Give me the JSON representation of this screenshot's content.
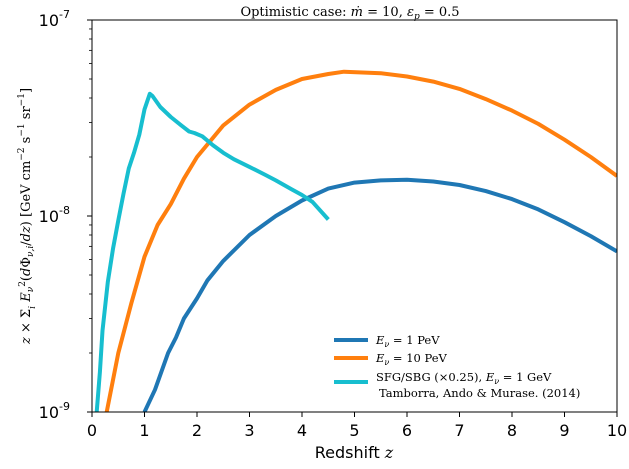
{
  "chart_data": {
    "type": "line",
    "title": "Optimistic case: ṁ = 10,  ε_p = 0.5",
    "xlabel": "Redshift z",
    "ylabel": "z × Σ_i E_ν² (dΦ_ν,i/dz) [GeV cm⁻² s⁻¹ sr⁻¹]",
    "xlim": [
      0,
      10
    ],
    "ylim": [
      1e-09,
      1e-07
    ],
    "yscale": "log",
    "grid": false,
    "legend_position": "lower-right",
    "x_ticks": [
      "0",
      "1",
      "2",
      "3",
      "4",
      "5",
      "6",
      "7",
      "8",
      "9",
      "10"
    ],
    "y_ticks": [
      {
        "base": "10",
        "exp": "-9"
      },
      {
        "base": "10",
        "exp": "-8"
      },
      {
        "base": "10",
        "exp": "-7"
      }
    ],
    "series": [
      {
        "name": "E_ν = 1 PeV",
        "color": "#1f77b4",
        "points": [
          [
            1.0,
            1e-09
          ],
          [
            1.2,
            1.3e-09
          ],
          [
            1.45,
            2e-09
          ],
          [
            1.6,
            2.4e-09
          ],
          [
            1.75,
            3e-09
          ],
          [
            2.0,
            3.8e-09
          ],
          [
            2.2,
            4.7e-09
          ],
          [
            2.5,
            5.9e-09
          ],
          [
            3.0,
            8e-09
          ],
          [
            3.5,
            1e-08
          ],
          [
            4.0,
            1.2e-08
          ],
          [
            4.5,
            1.38e-08
          ],
          [
            5.0,
            1.48e-08
          ],
          [
            5.5,
            1.52e-08
          ],
          [
            6.0,
            1.53e-08
          ],
          [
            6.5,
            1.5e-08
          ],
          [
            7.0,
            1.44e-08
          ],
          [
            7.5,
            1.34e-08
          ],
          [
            8.0,
            1.22e-08
          ],
          [
            8.5,
            1.08e-08
          ],
          [
            9.0,
            9.3e-09
          ],
          [
            9.5,
            7.9e-09
          ],
          [
            10.0,
            6.6e-09
          ]
        ]
      },
      {
        "name": "E_ν = 10 PeV",
        "color": "#ff7f0e",
        "points": [
          [
            0.28,
            1e-09
          ],
          [
            0.5,
            2e-09
          ],
          [
            0.75,
            3.6e-09
          ],
          [
            1.0,
            6.2e-09
          ],
          [
            1.25,
            9e-09
          ],
          [
            1.5,
            1.15e-08
          ],
          [
            1.75,
            1.55e-08
          ],
          [
            2.0,
            2e-08
          ],
          [
            2.5,
            2.9e-08
          ],
          [
            3.0,
            3.7e-08
          ],
          [
            3.5,
            4.4e-08
          ],
          [
            4.0,
            5e-08
          ],
          [
            4.5,
            5.3e-08
          ],
          [
            4.8,
            5.45e-08
          ],
          [
            5.5,
            5.35e-08
          ],
          [
            6.0,
            5.15e-08
          ],
          [
            6.5,
            4.85e-08
          ],
          [
            7.0,
            4.45e-08
          ],
          [
            7.5,
            3.95e-08
          ],
          [
            8.0,
            3.45e-08
          ],
          [
            8.5,
            2.95e-08
          ],
          [
            9.0,
            2.45e-08
          ],
          [
            9.5,
            2e-08
          ],
          [
            10.0,
            1.6e-08
          ]
        ]
      },
      {
        "name": "SFG/SBG (×0.25), E_ν = 1 GeV",
        "name_line2": "Tamborra, Ando & Murase. (2014)",
        "color": "#17becf",
        "points": [
          [
            0.09,
            1e-09
          ],
          [
            0.15,
            1.6e-09
          ],
          [
            0.2,
            2.6e-09
          ],
          [
            0.3,
            4.6e-09
          ],
          [
            0.4,
            6.8e-09
          ],
          [
            0.5,
            9.5e-09
          ],
          [
            0.6,
            1.3e-08
          ],
          [
            0.7,
            1.75e-08
          ],
          [
            0.8,
            2.1e-08
          ],
          [
            0.9,
            2.6e-08
          ],
          [
            1.0,
            3.5e-08
          ],
          [
            1.1,
            4.2e-08
          ],
          [
            1.15,
            4.1e-08
          ],
          [
            1.3,
            3.6e-08
          ],
          [
            1.5,
            3.2e-08
          ],
          [
            1.7,
            2.9e-08
          ],
          [
            1.85,
            2.7e-08
          ],
          [
            1.95,
            2.65e-08
          ],
          [
            2.1,
            2.55e-08
          ],
          [
            2.3,
            2.3e-08
          ],
          [
            2.5,
            2.1e-08
          ],
          [
            2.7,
            1.95e-08
          ],
          [
            3.0,
            1.78e-08
          ],
          [
            3.3,
            1.62e-08
          ],
          [
            3.5,
            1.52e-08
          ],
          [
            3.8,
            1.37e-08
          ],
          [
            4.0,
            1.28e-08
          ],
          [
            4.2,
            1.18e-08
          ],
          [
            4.5,
            9.6e-09
          ]
        ]
      }
    ]
  }
}
